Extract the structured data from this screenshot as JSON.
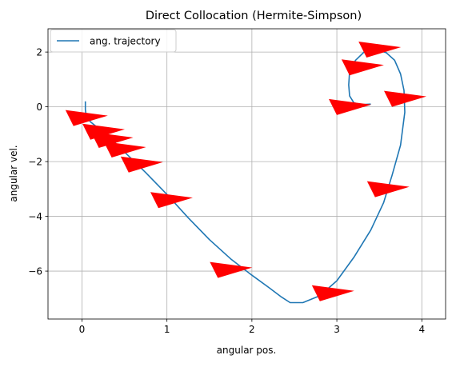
{
  "chart_data": {
    "type": "line",
    "title": "Direct Collocation (Hermite-Simpson)",
    "xlabel": "angular pos.",
    "ylabel": "angular vel.",
    "xlim": [
      -0.4,
      4.28
    ],
    "ylim": [
      -7.75,
      2.85
    ],
    "xticks": [
      0,
      1,
      2,
      3,
      4
    ],
    "yticks": [
      2,
      0,
      -2,
      -4,
      -6
    ],
    "grid": true,
    "legend_position": "top-left",
    "series": [
      {
        "name": "ang. trajectory",
        "color": "#1f77b4",
        "x": [
          0.04,
          0.04,
          0.05,
          0.1,
          0.2,
          0.35,
          0.55,
          0.75,
          1.0,
          1.25,
          1.5,
          1.75,
          2.0,
          2.2,
          2.35,
          2.45,
          2.6,
          2.8,
          3.0,
          3.2,
          3.4,
          3.55,
          3.65,
          3.75,
          3.8,
          3.79,
          3.75,
          3.68,
          3.58,
          3.45,
          3.32,
          3.22,
          3.15,
          3.14,
          3.15,
          3.2,
          3.28,
          3.4
        ],
        "y": [
          0.2,
          -0.1,
          -0.35,
          -0.55,
          -0.8,
          -1.2,
          -1.8,
          -2.4,
          -3.2,
          -4.05,
          -4.85,
          -5.55,
          -6.15,
          -6.6,
          -6.95,
          -7.15,
          -7.15,
          -6.9,
          -6.35,
          -5.5,
          -4.5,
          -3.5,
          -2.5,
          -1.4,
          -0.2,
          0.6,
          1.2,
          1.7,
          1.98,
          2.1,
          2.0,
          1.7,
          1.3,
          0.8,
          0.4,
          0.15,
          0.08,
          0.1
        ]
      }
    ],
    "markers": {
      "color": "#ff0000",
      "shape": "right-pointing-triangle",
      "x": [
        0.05,
        0.25,
        0.35,
        0.5,
        0.7,
        1.05,
        1.75,
        2.95,
        3.15,
        3.3,
        3.5,
        3.8,
        3.6
      ],
      "y": [
        -0.35,
        -0.85,
        -1.15,
        -1.5,
        -2.05,
        -3.35,
        -5.9,
        -6.75,
        0.05,
        1.5,
        2.15,
        0.35,
        -2.95
      ]
    }
  }
}
